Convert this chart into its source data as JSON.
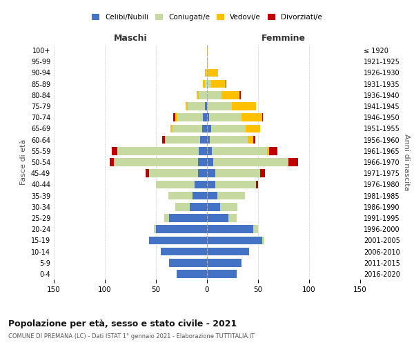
{
  "age_groups": [
    "0-4",
    "5-9",
    "10-14",
    "15-19",
    "20-24",
    "25-29",
    "30-34",
    "35-39",
    "40-44",
    "45-49",
    "50-54",
    "55-59",
    "60-64",
    "65-69",
    "70-74",
    "75-79",
    "80-84",
    "85-89",
    "90-94",
    "95-99",
    "100+"
  ],
  "birth_years": [
    "2016-2020",
    "2011-2015",
    "2006-2010",
    "2001-2005",
    "1996-2000",
    "1991-1995",
    "1986-1990",
    "1981-1985",
    "1976-1980",
    "1971-1975",
    "1966-1970",
    "1961-1965",
    "1956-1960",
    "1951-1955",
    "1946-1950",
    "1941-1945",
    "1936-1940",
    "1931-1935",
    "1926-1930",
    "1921-1925",
    "≤ 1920"
  ],
  "males": {
    "celibi": [
      30,
      37,
      45,
      57,
      50,
      37,
      17,
      14,
      12,
      9,
      9,
      8,
      7,
      5,
      4,
      2,
      0,
      0,
      0,
      0,
      0
    ],
    "coniugati": [
      0,
      0,
      0,
      0,
      2,
      5,
      14,
      24,
      38,
      48,
      82,
      80,
      34,
      29,
      25,
      17,
      8,
      2,
      1,
      0,
      0
    ],
    "vedovi": [
      0,
      0,
      0,
      0,
      0,
      0,
      0,
      0,
      0,
      0,
      0,
      0,
      0,
      2,
      2,
      2,
      2,
      2,
      1,
      0,
      0
    ],
    "divorziati": [
      0,
      0,
      0,
      0,
      0,
      0,
      0,
      0,
      0,
      3,
      4,
      5,
      3,
      0,
      2,
      0,
      0,
      0,
      0,
      0,
      0
    ]
  },
  "females": {
    "nubili": [
      29,
      34,
      41,
      54,
      45,
      21,
      13,
      10,
      8,
      8,
      6,
      5,
      3,
      4,
      2,
      0,
      0,
      0,
      0,
      0,
      0
    ],
    "coniugate": [
      0,
      0,
      0,
      2,
      5,
      8,
      17,
      27,
      40,
      44,
      74,
      54,
      37,
      34,
      32,
      24,
      14,
      4,
      1,
      0,
      0
    ],
    "vedove": [
      0,
      0,
      0,
      0,
      0,
      0,
      0,
      0,
      0,
      0,
      0,
      2,
      5,
      14,
      20,
      24,
      18,
      14,
      10,
      1,
      1
    ],
    "divorziate": [
      0,
      0,
      0,
      0,
      0,
      0,
      0,
      0,
      2,
      5,
      9,
      8,
      2,
      0,
      1,
      0,
      1,
      1,
      0,
      0,
      0
    ]
  },
  "color_celibi": "#4472c4",
  "color_coniugati": "#c5d9a0",
  "color_vedovi": "#ffc000",
  "color_divorziati": "#c00000",
  "title": "Popolazione per età, sesso e stato civile - 2021",
  "subtitle": "COMUNE DI PREMANA (LC) - Dati ISTAT 1° gennaio 2021 - Elaborazione TUTTITALIA.IT",
  "xlabel_left": "Maschi",
  "xlabel_right": "Femmine",
  "ylabel_left": "Fasce di età",
  "ylabel_right": "Anni di nascita",
  "xlim": 150,
  "background_color": "#ffffff",
  "grid_color": "#cccccc"
}
